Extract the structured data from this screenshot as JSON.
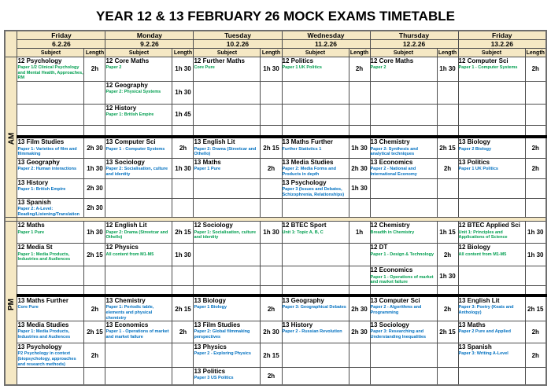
{
  "title": "YEAR 12 & 13 FEBRUARY 26 MOCK EXAMS TIMETABLE",
  "col_headers": {
    "subject": "Subject",
    "length": "Length"
  },
  "days": [
    {
      "name": "Friday",
      "date": "6.2.26"
    },
    {
      "name": "Monday",
      "date": "9.2.26"
    },
    {
      "name": "Tuesday",
      "date": "10.2.26"
    },
    {
      "name": "Wednesday",
      "date": "11.2.26"
    },
    {
      "name": "Thursday",
      "date": "12.2.26"
    },
    {
      "name": "Friday",
      "date": "13.2.26"
    }
  ],
  "colors": {
    "header_bg": "#f5e8c4",
    "year12_paper": "#009e4f",
    "year13_paper": "#0070c0",
    "divider": "#000000"
  },
  "sections": [
    {
      "period": "AM",
      "groups": [
        {
          "year": 12,
          "rows": [
            [
              {
                "subject": "12 Psychology",
                "paper": "Paper 1/2 Clinical Psychology and Mental Health, Approaches, RM",
                "length": "2h"
              },
              {
                "subject": "12 Core Maths",
                "paper": "Paper 2",
                "length": "1h 30"
              },
              {
                "subject": "12 Further Maths",
                "paper": "Core Pure",
                "length": "1h 30"
              },
              {
                "subject": "12 Politics",
                "paper": "Paper 1 UK Politics",
                "length": "2h"
              },
              {
                "subject": "12 Core Maths",
                "paper": "Paper 2",
                "length": "1h 30"
              },
              {
                "subject": "12 Computer Sci",
                "paper": "Paper 1 - Computer Systems",
                "length": "2h"
              }
            ],
            [
              null,
              {
                "subject": "12 Geography",
                "paper": "Paper 2: Physical Systems",
                "length": "1h 30"
              },
              null,
              null,
              null,
              null
            ],
            [
              null,
              {
                "subject": "12 History",
                "paper": "Paper 1: British Empire",
                "length": "1h 45"
              },
              null,
              null,
              null,
              null
            ],
            [
              null,
              null,
              null,
              null,
              null,
              null
            ]
          ]
        },
        {
          "year": 13,
          "rows": [
            [
              {
                "subject": "13 Film Studies",
                "paper": "Paper 1: Varieties of film and filmmaking",
                "length": "2h 30"
              },
              {
                "subject": "13 Computer Sci",
                "paper": "Paper 1 - Computer Systems",
                "length": "2h"
              },
              {
                "subject": "13 English Lit",
                "paper": "Paper 2: Drama (Streetcar and Othello)",
                "length": "2h 15"
              },
              {
                "subject": "13 Maths Further",
                "paper": "Further Statistics 1",
                "length": "1h 30"
              },
              {
                "subject": "13 Chemistry",
                "paper": "Paper 2: Synthesis and analytical techniques",
                "length": "2h 15"
              },
              {
                "subject": "13 Biology",
                "paper": "Paper 2 Biology",
                "length": "2h"
              }
            ],
            [
              {
                "subject": "13 Geography",
                "paper": "Paper 2: Human interactions",
                "length": "1h 30"
              },
              {
                "subject": "13 Sociology",
                "paper": "Paper 2: Socialisation, culture and identity",
                "length": "1h 30"
              },
              {
                "subject": "13 Maths",
                "paper": "Paper 1 Pure",
                "length": "2h"
              },
              {
                "subject": "13 Media Studies",
                "paper": "Paper 2: Media Forms and Products in depth",
                "length": "2h 30"
              },
              {
                "subject": "13 Economics",
                "paper": "Paper 2 - National and International Economy",
                "length": "2h"
              },
              {
                "subject": "13 Politics",
                "paper": "Paper 1 UK Politics",
                "length": "2h"
              }
            ],
            [
              {
                "subject": "13 History",
                "paper": "Paper 1: British Empire",
                "length": "2h 30"
              },
              null,
              null,
              {
                "subject": "13 Psychology",
                "paper": "Paper 3 (Issues and Debates, Schizophrenia, Relationships)",
                "length": "1h 30"
              },
              null,
              null
            ],
            [
              {
                "subject": "13 Spanish",
                "paper": "Paper 2: A-Level: Reading/Listening/Translation",
                "length": "2h 30"
              },
              null,
              null,
              null,
              null,
              null
            ]
          ]
        }
      ]
    },
    {
      "period": "PM",
      "groups": [
        {
          "year": 12,
          "rows": [
            [
              {
                "subject": "12 Maths",
                "paper": "Paper 1 Pure",
                "length": "1h 30"
              },
              {
                "subject": "12 English Lit",
                "paper": "Paper 2: Drama (Streetcar and Othello)",
                "length": "2h 15"
              },
              {
                "subject": "12 Sociology",
                "paper": "Paper 1: Socialisation, culture and identity",
                "length": "1h 30"
              },
              {
                "subject": "12 BTEC Sport",
                "paper": "Unit 1: Topic A, B, C",
                "length": "1h"
              },
              {
                "subject": "12 Chemistry",
                "paper": "Breadth in Chemistry",
                "length": "1h 15"
              },
              {
                "subject": "12 BTEC Applied Sci",
                "paper": "Unit 1: Principles and Applications of Science",
                "length": "1h 30"
              }
            ],
            [
              {
                "subject": "12 Media St",
                "paper": "Paper 1: Media Products, Industries and Audiences",
                "length": "2h 15"
              },
              {
                "subject": "12 Physics",
                "paper": "All content from M1-M5",
                "length": "1h 30"
              },
              null,
              null,
              {
                "subject": "12 DT",
                "paper": "Paper 1 - Design & Technology",
                "length": "2h"
              },
              {
                "subject": "12 Biology",
                "paper": "All content from M1-M5",
                "length": "1h 30"
              }
            ],
            [
              null,
              null,
              null,
              null,
              {
                "subject": "12 Economics",
                "paper": "Paper 1 - Operations of market and market failure",
                "length": "1h 30"
              },
              null
            ],
            [
              null,
              null,
              null,
              null,
              null,
              null
            ]
          ]
        },
        {
          "year": 13,
          "rows": [
            [
              {
                "subject": "13 Maths Further",
                "paper": "Core Pure",
                "length": "2h"
              },
              {
                "subject": "13 Chemistry",
                "paper": "Paper 1: Periodic table, elements and physical chemistry",
                "length": "2h 15"
              },
              {
                "subject": "13 Biology",
                "paper": "Paper 1 Biology",
                "length": "2h"
              },
              {
                "subject": "13 Geography",
                "paper": "Paper 3: Geographical Debates",
                "length": "2h 30"
              },
              {
                "subject": "13 Computer Sci",
                "paper": "Paper 2 - Algorithms and Programming",
                "length": "2h"
              },
              {
                "subject": "13 English Lit",
                "paper": "Paper 3: Poetry (Keats and Anthology)",
                "length": "2h 15"
              }
            ],
            [
              {
                "subject": "13 Media Studies",
                "paper": "Paper 1: Media Products, Industries and Audiences",
                "length": "2h 15"
              },
              {
                "subject": "13 Economics",
                "paper": "Paper 1 - Operations of market and market failure",
                "length": "2h"
              },
              {
                "subject": "13 Film Studies",
                "paper": "Paper 2: Global filmmaking perspectives",
                "length": "2h 30"
              },
              {
                "subject": "13 History",
                "paper": "Paper 2 - Russian Revolution",
                "length": "2h 30"
              },
              {
                "subject": "13 Sociology",
                "paper": "Paper 3: Researching and Understanding Inequalities",
                "length": "2h 15"
              },
              {
                "subject": "13 Maths",
                "paper": "Paper 2 Pure and Applied",
                "length": "2h"
              }
            ],
            [
              {
                "subject": "13 Psychology",
                "paper": "P2 Psychology in context (biopsychology, approaches and research methods)",
                "length": "2h"
              },
              null,
              {
                "subject": "13 Physics",
                "paper": "Paper 2 - Exploring Physics",
                "length": "2h 15"
              },
              null,
              null,
              {
                "subject": "13 Spanish",
                "paper": "Paper 3: Writing A-Level",
                "length": "2h"
              }
            ],
            [
              null,
              null,
              {
                "subject": "13 Politics",
                "paper": "Paper 3 US Politics",
                "length": "2h"
              },
              null,
              null,
              null
            ]
          ]
        }
      ]
    }
  ]
}
